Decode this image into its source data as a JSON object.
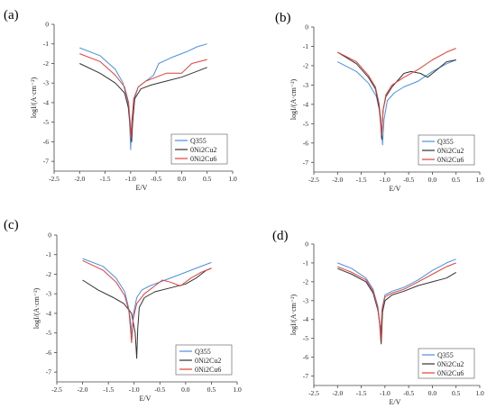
{
  "colors": {
    "Q355": "#4a90e2",
    "0Ni2Cu2": "#333333",
    "0Ni2Cu6": "#e0403a",
    "axis": "#444444"
  },
  "chart_data": [
    {
      "type": "line",
      "label": "(a)",
      "xlabel": "E/V",
      "ylabel": "logI/(A·cm⁻²)",
      "xlim": [
        -2.5,
        1.0
      ],
      "ylim": [
        -7.5,
        0
      ],
      "xticks": [
        "-2.5",
        "-2.0",
        "-1.5",
        "-1.0",
        "-0.5",
        "0.0",
        "0.5",
        "1.0"
      ],
      "yticks": [
        "0",
        "-1",
        "-2",
        "-3",
        "-4",
        "-5",
        "-6",
        "-7"
      ],
      "legend_position": "bottom-right",
      "series": [
        {
          "name": "Q355",
          "x": [
            -2.0,
            -1.6,
            -1.3,
            -1.15,
            -1.06,
            -1.02,
            -1.0,
            -0.98,
            -0.94,
            -0.85,
            -0.7,
            -0.55,
            -0.45,
            -0.2,
            0.1,
            0.3,
            0.5
          ],
          "y": [
            -1.2,
            -1.6,
            -2.3,
            -3.0,
            -3.9,
            -5.0,
            -6.4,
            -5.0,
            -3.9,
            -3.2,
            -2.9,
            -2.6,
            -2.0,
            -1.7,
            -1.4,
            -1.15,
            -1.0
          ]
        },
        {
          "name": "0Ni2Cu2",
          "x": [
            -2.0,
            -1.6,
            -1.3,
            -1.12,
            -1.04,
            -1.01,
            -0.98,
            -0.96,
            -0.92,
            -0.8,
            -0.6,
            -0.3,
            0.0,
            0.3,
            0.5
          ],
          "y": [
            -2.0,
            -2.5,
            -3.0,
            -3.5,
            -4.3,
            -5.2,
            -6.0,
            -5.0,
            -3.8,
            -3.3,
            -3.1,
            -2.9,
            -2.7,
            -2.4,
            -2.2
          ]
        },
        {
          "name": "0Ni2Cu6",
          "x": [
            -2.0,
            -1.6,
            -1.3,
            -1.12,
            -1.04,
            -1.01,
            -0.99,
            -0.97,
            -0.94,
            -0.85,
            -0.7,
            -0.5,
            -0.3,
            0.0,
            0.2,
            0.5
          ],
          "y": [
            -1.5,
            -1.9,
            -2.6,
            -3.2,
            -4.0,
            -5.0,
            -5.8,
            -4.8,
            -3.8,
            -3.2,
            -2.9,
            -2.7,
            -2.5,
            -2.5,
            -2.0,
            -1.8
          ]
        }
      ]
    },
    {
      "type": "line",
      "label": "(b)",
      "xlabel": "E/V",
      "ylabel": "logI/(A·cm⁻²)",
      "xlim": [
        -2.5,
        1.0
      ],
      "ylim": [
        -7.5,
        0
      ],
      "xticks": [
        "-2.5",
        "-2.0",
        "-1.5",
        "-1.0",
        "-0.5",
        "0.0",
        "0.5",
        "1.0"
      ],
      "yticks": [
        "0",
        "-1",
        "-2",
        "-3",
        "-4",
        "-5",
        "-6",
        "-7"
      ],
      "legend_position": "bottom-right",
      "series": [
        {
          "name": "Q355",
          "x": [
            -2.0,
            -1.6,
            -1.35,
            -1.18,
            -1.1,
            -1.07,
            -1.05,
            -1.02,
            -0.95,
            -0.8,
            -0.6,
            -0.3,
            0.0,
            0.3,
            0.5
          ],
          "y": [
            -1.8,
            -2.3,
            -2.9,
            -3.6,
            -4.5,
            -5.3,
            -6.1,
            -4.8,
            -3.8,
            -3.4,
            -3.1,
            -2.8,
            -2.3,
            -1.9,
            -1.7
          ]
        },
        {
          "name": "0Ni2Cu2",
          "x": [
            -2.0,
            -1.6,
            -1.35,
            -1.2,
            -1.12,
            -1.09,
            -1.07,
            -1.04,
            -0.98,
            -0.85,
            -0.6,
            -0.45,
            -0.25,
            -0.1,
            0.05,
            0.3,
            0.5
          ],
          "y": [
            -1.3,
            -1.9,
            -2.6,
            -3.2,
            -4.2,
            -5.0,
            -5.8,
            -4.3,
            -3.6,
            -3.1,
            -2.4,
            -2.3,
            -2.4,
            -2.6,
            -2.3,
            -1.8,
            -1.7
          ]
        },
        {
          "name": "0Ni2Cu6",
          "x": [
            -2.0,
            -1.6,
            -1.35,
            -1.2,
            -1.12,
            -1.09,
            -1.07,
            -1.04,
            -0.98,
            -0.85,
            -0.6,
            -0.3,
            0.0,
            0.3,
            0.5
          ],
          "y": [
            -1.3,
            -1.8,
            -2.5,
            -3.1,
            -4.0,
            -4.8,
            -5.6,
            -4.3,
            -3.5,
            -3.0,
            -2.6,
            -2.2,
            -1.7,
            -1.3,
            -1.1
          ]
        }
      ]
    },
    {
      "type": "line",
      "label": "(c)",
      "xlabel": "E/V",
      "ylabel": "logI/(A·cm⁻²)",
      "xlim": [
        -2.5,
        1.0
      ],
      "ylim": [
        -7.5,
        0
      ],
      "xticks": [
        "-2.5",
        "-2.0",
        "-1.5",
        "-1.0",
        "-0.5",
        "0.0",
        "0.5",
        "1.0"
      ],
      "yticks": [
        "0",
        "-1",
        "-2",
        "-3",
        "-4",
        "-5",
        "-6",
        "-7"
      ],
      "legend_position": "bottom-right",
      "series": [
        {
          "name": "Q355",
          "x": [
            -2.0,
            -1.6,
            -1.35,
            -1.18,
            -1.1,
            -1.06,
            -1.04,
            -1.01,
            -0.95,
            -0.85,
            -0.7,
            -0.4,
            -0.1,
            0.2,
            0.5
          ],
          "y": [
            -1.2,
            -1.6,
            -2.2,
            -2.9,
            -3.8,
            -4.6,
            -5.2,
            -4.0,
            -3.2,
            -2.8,
            -2.6,
            -2.3,
            -2.0,
            -1.7,
            -1.4
          ]
        },
        {
          "name": "0Ni2Cu2",
          "x": [
            -2.0,
            -1.7,
            -1.4,
            -1.2,
            -1.05,
            -0.98,
            -0.95,
            -0.93,
            -0.9,
            -0.8,
            -0.6,
            -0.3,
            0.0,
            0.2,
            0.4,
            0.5
          ],
          "y": [
            -2.3,
            -2.8,
            -3.2,
            -3.5,
            -4.0,
            -5.0,
            -6.3,
            -4.8,
            -3.7,
            -3.2,
            -2.9,
            -2.7,
            -2.5,
            -2.2,
            -1.8,
            -1.7
          ]
        },
        {
          "name": "0Ni2Cu6",
          "x": [
            -2.0,
            -1.6,
            -1.35,
            -1.18,
            -1.1,
            -1.07,
            -1.05,
            -1.02,
            -0.95,
            -0.8,
            -0.6,
            -0.45,
            -0.3,
            -0.1,
            0.1,
            0.3,
            0.5
          ],
          "y": [
            -1.3,
            -1.8,
            -2.4,
            -3.1,
            -3.9,
            -4.8,
            -5.5,
            -4.3,
            -3.5,
            -3.0,
            -2.6,
            -2.3,
            -2.4,
            -2.6,
            -2.2,
            -1.9,
            -1.7
          ]
        }
      ]
    },
    {
      "type": "line",
      "label": "(d)",
      "xlabel": "E/V",
      "ylabel": "logI/(A·cm⁻²)",
      "xlim": [
        -2.5,
        1.0
      ],
      "ylim": [
        -7.5,
        0
      ],
      "xticks": [
        "-2.5",
        "-2.0",
        "-1.5",
        "-1.0",
        "-0.5",
        "0.0",
        "0.5",
        "1.0"
      ],
      "yticks": [
        "0",
        "-1",
        "-2",
        "-3",
        "-4",
        "-5",
        "-6",
        "-7"
      ],
      "legend_position": "bottom-right",
      "series": [
        {
          "name": "Q355",
          "x": [
            -2.0,
            -1.7,
            -1.4,
            -1.25,
            -1.15,
            -1.11,
            -1.09,
            -1.06,
            -1.0,
            -0.85,
            -0.6,
            -0.3,
            0.0,
            0.3,
            0.5
          ],
          "y": [
            -1.0,
            -1.3,
            -1.8,
            -2.4,
            -3.3,
            -4.2,
            -5.0,
            -3.4,
            -2.7,
            -2.5,
            -2.3,
            -1.9,
            -1.4,
            -1.0,
            -0.8
          ]
        },
        {
          "name": "0Ni2Cu2",
          "x": [
            -2.0,
            -1.7,
            -1.4,
            -1.25,
            -1.15,
            -1.1,
            -1.08,
            -1.05,
            -1.0,
            -0.85,
            -0.6,
            -0.3,
            0.0,
            0.3,
            0.5
          ],
          "y": [
            -1.3,
            -1.6,
            -2.0,
            -2.6,
            -3.5,
            -4.4,
            -5.3,
            -3.6,
            -3.0,
            -2.7,
            -2.5,
            -2.2,
            -2.0,
            -1.8,
            -1.5
          ]
        },
        {
          "name": "0Ni2Cu6",
          "x": [
            -2.0,
            -1.7,
            -1.4,
            -1.25,
            -1.15,
            -1.11,
            -1.09,
            -1.06,
            -1.0,
            -0.85,
            -0.6,
            -0.3,
            0.0,
            0.3,
            0.5
          ],
          "y": [
            -1.2,
            -1.5,
            -1.9,
            -2.5,
            -3.4,
            -4.3,
            -5.1,
            -3.5,
            -2.8,
            -2.6,
            -2.4,
            -2.0,
            -1.6,
            -1.2,
            -1.0
          ]
        }
      ]
    }
  ]
}
